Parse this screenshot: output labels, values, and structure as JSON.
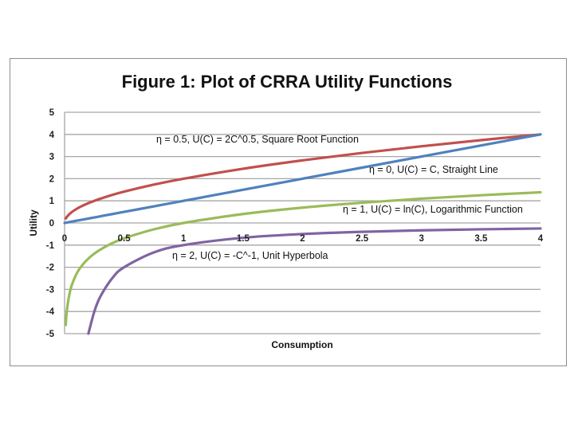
{
  "chart_data": {
    "type": "line",
    "title": "Figure 1: Plot of CRRA Utility Functions",
    "xlabel": "Consumption",
    "ylabel": "Utility",
    "xlim": [
      0,
      4
    ],
    "ylim": [
      -5,
      5
    ],
    "x_ticks": [
      "0",
      "0.5",
      "1",
      "1.5",
      "2",
      "2.5",
      "3",
      "3.5",
      "4"
    ],
    "y_ticks": [
      "5",
      "4",
      "3",
      "2",
      "1",
      "0",
      "-1",
      "-2",
      "-3",
      "-4",
      "-5"
    ],
    "grid": true,
    "x": [
      0.01,
      0.02,
      0.05,
      0.1,
      0.15,
      0.2,
      0.25,
      0.3,
      0.4,
      0.5,
      0.75,
      1,
      1.5,
      2,
      2.5,
      3,
      3.5,
      4
    ],
    "series": [
      {
        "name": "eta=0.5",
        "color": "#c0504d",
        "values": [
          0.2,
          0.283,
          0.447,
          0.632,
          0.775,
          0.894,
          1.0,
          1.095,
          1.265,
          1.414,
          1.732,
          2,
          2.449,
          2.828,
          3.162,
          3.464,
          3.742,
          4
        ]
      },
      {
        "name": "eta=0",
        "color": "#4f81bd",
        "values": [
          0.01,
          0.02,
          0.05,
          0.1,
          0.15,
          0.2,
          0.25,
          0.3,
          0.4,
          0.5,
          0.75,
          1,
          1.5,
          2,
          2.5,
          3,
          3.5,
          4
        ]
      },
      {
        "name": "eta=1",
        "color": "#9bbb59",
        "values": [
          -4.605,
          -3.912,
          -2.996,
          -2.303,
          -1.897,
          -1.609,
          -1.386,
          -1.204,
          -0.916,
          -0.693,
          -0.288,
          0,
          0.405,
          0.693,
          0.916,
          1.099,
          1.253,
          1.386
        ]
      },
      {
        "name": "eta=2",
        "color": "#8064a2",
        "values": [
          null,
          null,
          null,
          null,
          null,
          -5,
          -4,
          -3.333,
          -2.5,
          -2,
          -1.333,
          -1,
          -0.667,
          -0.5,
          -0.4,
          -0.333,
          -0.286,
          -0.25
        ]
      }
    ],
    "annotations": [
      "η = 0.5, U(C) = 2C^0.5, Square Root Function",
      "η = 0, U(C) = C, Straight Line",
      "η = 1, U(C) = ln(C), Logarithmic Function",
      "η = 2, U(C) = -C^-1, Unit Hyperbola"
    ]
  }
}
